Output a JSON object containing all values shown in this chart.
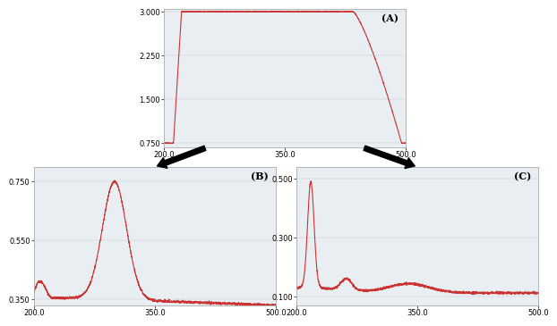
{
  "background_color": "#ffffff",
  "line_color": "#cc3333",
  "panel_bg": "#e8eef2",
  "label_A": "(A)",
  "label_B": "(B)",
  "label_C": "(C)",
  "xmin": 200.0,
  "xmax": 500.0,
  "A_yticks": [
    0.75,
    1.5,
    2.25,
    3.0
  ],
  "A_ylim": [
    0.68,
    3.05
  ],
  "B_yticks": [
    0.35,
    0.55,
    0.75
  ],
  "B_ylim": [
    0.33,
    0.8
  ],
  "C_yticks": [
    0.1,
    0.3,
    0.5
  ],
  "C_ylim": [
    0.07,
    0.54
  ]
}
